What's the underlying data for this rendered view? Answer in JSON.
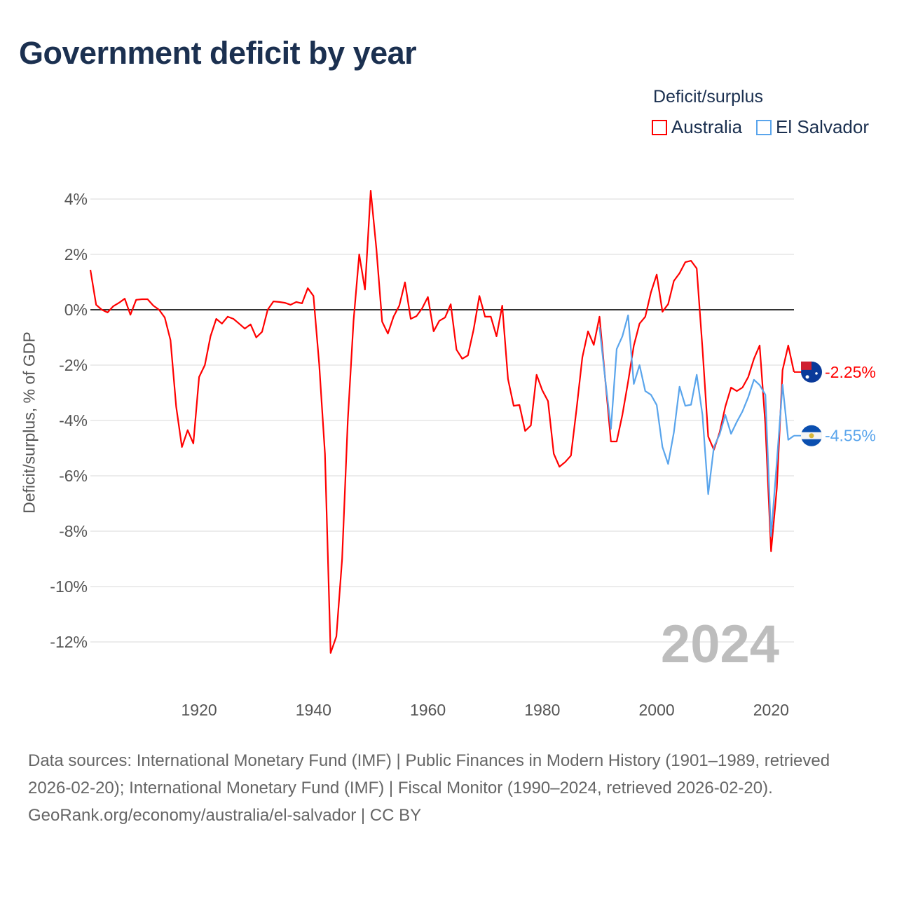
{
  "title": "Government deficit by year",
  "legend": {
    "title": "Deficit/surplus",
    "items": [
      {
        "name": "Australia",
        "color": "#ff0000"
      },
      {
        "name": "El Salvador",
        "color": "#5aa5ec"
      }
    ]
  },
  "chart_data": {
    "type": "line",
    "title": "Government deficit by year",
    "xlabel": "",
    "ylabel": "Deficit/surplus, % of GDP",
    "xlim": [
      1901,
      2024
    ],
    "ylim": [
      -13.5,
      4.5
    ],
    "x_ticks": [
      1920,
      1940,
      1960,
      1980,
      2000,
      2020
    ],
    "y_ticks": [
      4,
      2,
      0,
      -2,
      -4,
      -6,
      -8,
      -10,
      -12
    ],
    "y_tick_labels": [
      "4%",
      "2%",
      "0%",
      "-2%",
      "-4%",
      "-6%",
      "-8%",
      "-10%",
      "-12%"
    ],
    "grid": true,
    "watermark_year": "2024",
    "series": [
      {
        "name": "Australia",
        "color": "#ff0000",
        "start_year": 1901,
        "end_label": "-2.25%",
        "values": [
          1.44,
          0.18,
          0.0,
          -0.1,
          0.13,
          0.25,
          0.4,
          -0.18,
          0.36,
          0.38,
          0.38,
          0.15,
          0.0,
          -0.28,
          -1.1,
          -3.5,
          -4.96,
          -4.35,
          -4.83,
          -2.43,
          -2.0,
          -0.96,
          -0.33,
          -0.5,
          -0.25,
          -0.33,
          -0.5,
          -0.68,
          -0.53,
          -1.0,
          -0.8,
          0.0,
          0.3,
          0.28,
          0.25,
          0.18,
          0.28,
          0.23,
          0.78,
          0.5,
          -1.97,
          -5.2,
          -12.4,
          -11.8,
          -9.0,
          -4.0,
          -0.4,
          2.0,
          0.73,
          4.3,
          2.2,
          -0.43,
          -0.86,
          -0.25,
          0.15,
          0.99,
          -0.33,
          -0.23,
          0.05,
          0.46,
          -0.78,
          -0.4,
          -0.28,
          0.2,
          -1.44,
          -1.77,
          -1.65,
          -0.71,
          0.5,
          -0.25,
          -0.25,
          -0.96,
          0.15,
          -2.5,
          -3.47,
          -3.44,
          -4.38,
          -4.18,
          -2.35,
          -2.91,
          -3.3,
          -5.2,
          -5.67,
          -5.5,
          -5.27,
          -3.57,
          -1.72,
          -0.78,
          -1.27,
          -0.25,
          -2.5,
          -4.76,
          -4.76,
          -3.8,
          -2.6,
          -1.3,
          -0.5,
          -0.25,
          0.63,
          1.27,
          -0.07,
          0.2,
          1.04,
          1.32,
          1.72,
          1.77,
          1.49,
          -1.39,
          -4.58,
          -5.06,
          -4.43,
          -3.5,
          -2.81,
          -2.94,
          -2.81,
          -2.43,
          -1.77,
          -1.29,
          -4.17,
          -8.73,
          -6.45,
          -2.18,
          -1.29,
          -2.25
        ]
      },
      {
        "name": "El Salvador",
        "color": "#5aa5ec",
        "start_year": 1990,
        "end_label": "-4.55%",
        "values": [
          -0.63,
          -2.5,
          -4.3,
          -1.42,
          -0.96,
          -0.2,
          -2.68,
          -2.0,
          -2.94,
          -3.07,
          -3.44,
          -4.96,
          -5.57,
          -4.43,
          -2.78,
          -3.47,
          -3.43,
          -2.35,
          -3.8,
          -6.66,
          -4.96,
          -4.5,
          -3.8,
          -4.48,
          -4.05,
          -3.67,
          -3.16,
          -2.53,
          -2.72,
          -3.07,
          -8.18,
          -5.5,
          -2.71,
          -4.7,
          -4.55
        ]
      }
    ]
  },
  "footer": {
    "sources": "Data sources: International Monetary Fund (IMF) | Public Finances in Modern History (1901–1989, retrieved 2026-02-20); International Monetary Fund (IMF) | Fiscal Monitor (1990–2024, retrieved 2026-02-20).",
    "credit": "GeoRank.org/economy/australia/el-salvador | CC BY"
  }
}
